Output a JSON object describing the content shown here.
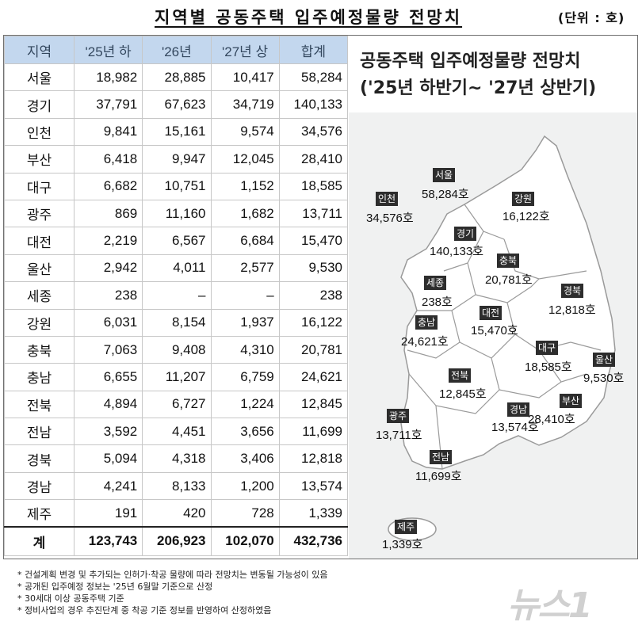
{
  "title": "지역별 공동주택 입주예정물량 전망치",
  "unit": "(단위 : 호)",
  "table": {
    "headers": [
      "지역",
      "'25년 하",
      "'26년",
      "'27년 상",
      "합계"
    ],
    "rows": [
      {
        "region": "서울",
        "h25": "18,982",
        "y26": "28,885",
        "s27": "10,417",
        "total": "58,284"
      },
      {
        "region": "경기",
        "h25": "37,791",
        "y26": "67,623",
        "s27": "34,719",
        "total": "140,133"
      },
      {
        "region": "인천",
        "h25": "9,841",
        "y26": "15,161",
        "s27": "9,574",
        "total": "34,576"
      },
      {
        "region": "부산",
        "h25": "6,418",
        "y26": "9,947",
        "s27": "12,045",
        "total": "28,410"
      },
      {
        "region": "대구",
        "h25": "6,682",
        "y26": "10,751",
        "s27": "1,152",
        "total": "18,585"
      },
      {
        "region": "광주",
        "h25": "869",
        "y26": "11,160",
        "s27": "1,682",
        "total": "13,711"
      },
      {
        "region": "대전",
        "h25": "2,219",
        "y26": "6,567",
        "s27": "6,684",
        "total": "15,470"
      },
      {
        "region": "울산",
        "h25": "2,942",
        "y26": "4,011",
        "s27": "2,577",
        "total": "9,530"
      },
      {
        "region": "세종",
        "h25": "238",
        "y26": "–",
        "s27": "–",
        "total": "238"
      },
      {
        "region": "강원",
        "h25": "6,031",
        "y26": "8,154",
        "s27": "1,937",
        "total": "16,122"
      },
      {
        "region": "충북",
        "h25": "7,063",
        "y26": "9,408",
        "s27": "4,310",
        "total": "20,781"
      },
      {
        "region": "충남",
        "h25": "6,655",
        "y26": "11,207",
        "s27": "6,759",
        "total": "24,621"
      },
      {
        "region": "전북",
        "h25": "4,894",
        "y26": "6,727",
        "s27": "1,224",
        "total": "12,845"
      },
      {
        "region": "전남",
        "h25": "3,592",
        "y26": "4,451",
        "s27": "3,656",
        "total": "11,699"
      },
      {
        "region": "경북",
        "h25": "5,094",
        "y26": "4,318",
        "s27": "3,406",
        "total": "12,818"
      },
      {
        "region": "경남",
        "h25": "4,241",
        "y26": "8,133",
        "s27": "1,200",
        "total": "13,574"
      },
      {
        "region": "제주",
        "h25": "191",
        "y26": "420",
        "s27": "728",
        "total": "1,339"
      }
    ],
    "total": {
      "region": "계",
      "h25": "123,743",
      "y26": "206,923",
      "s27": "102,070",
      "total": "432,736"
    }
  },
  "map": {
    "title_line1": "공동주택 입주예정물량 전망치",
    "title_line2": "('25년 하반기~ '27년 상반기)",
    "regions": [
      {
        "name": "서울",
        "value": "58,284호"
      },
      {
        "name": "인천",
        "value": "34,576호"
      },
      {
        "name": "강원",
        "value": "16,122호"
      },
      {
        "name": "경기",
        "value": "140,133호"
      },
      {
        "name": "충북",
        "value": "20,781호"
      },
      {
        "name": "세종",
        "value": "238호"
      },
      {
        "name": "경북",
        "value": "12,818호"
      },
      {
        "name": "충남",
        "value": "24,621호"
      },
      {
        "name": "대전",
        "value": "15,470호"
      },
      {
        "name": "대구",
        "value": "18,585호"
      },
      {
        "name": "울산",
        "value": "9,530호"
      },
      {
        "name": "전북",
        "value": "12,845호"
      },
      {
        "name": "경남",
        "value": "13,574호"
      },
      {
        "name": "부산",
        "value": "28,410호"
      },
      {
        "name": "광주",
        "value": "13,711호"
      },
      {
        "name": "전남",
        "value": "11,699호"
      },
      {
        "name": "제주",
        "value": "1,339호"
      }
    ]
  },
  "notes": [
    "* 건설계획 변경 및 추가되는 인허가·착공 물량에 따라 전망치는 변동될 가능성이 있음",
    "* 공개된 입주예정 정보는 '25년 6월말 기준으로 산정",
    "* 30세대 이상 공동주택 기준",
    "* 정비사업의 경우 추진단계 중 착공 기준 정보를 반영하여 산정하였음"
  ],
  "logo": "뉴스1"
}
